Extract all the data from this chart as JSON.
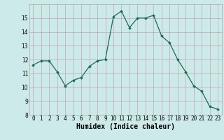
{
  "x": [
    0,
    1,
    2,
    3,
    4,
    5,
    6,
    7,
    8,
    9,
    10,
    11,
    12,
    13,
    14,
    15,
    16,
    17,
    18,
    19,
    20,
    21,
    22,
    23
  ],
  "y": [
    11.6,
    11.9,
    11.9,
    11.1,
    10.1,
    10.5,
    10.7,
    11.5,
    11.9,
    12.0,
    15.1,
    15.5,
    14.3,
    15.0,
    15.0,
    15.2,
    13.7,
    13.2,
    12.0,
    11.1,
    10.1,
    9.7,
    8.6,
    8.4
  ],
  "line_color": "#1a6b5a",
  "marker": "D",
  "marker_size": 1.8,
  "bg_color": "#cceaea",
  "grid_color": "#c0a8a8",
  "xlabel": "Humidex (Indice chaleur)",
  "xlabel_fontsize": 7,
  "xlabel_bold": true,
  "ylim": [
    8,
    16
  ],
  "yticks": [
    8,
    9,
    10,
    11,
    12,
    13,
    14,
    15
  ],
  "xticks": [
    0,
    1,
    2,
    3,
    4,
    5,
    6,
    7,
    8,
    9,
    10,
    11,
    12,
    13,
    14,
    15,
    16,
    17,
    18,
    19,
    20,
    21,
    22,
    23
  ],
  "tick_fontsize": 5.5,
  "line_width": 0.9
}
